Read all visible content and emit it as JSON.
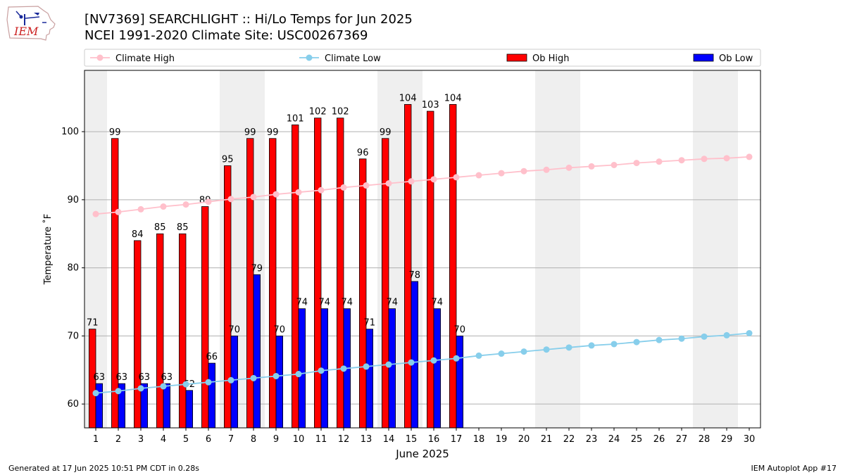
{
  "header": {
    "title_line1": "[NV7369] SEARCHLIGHT :: Hi/Lo Temps for Jun 2025",
    "title_line2": "NCEI 1991-2020 Climate Site: USC00267369",
    "logo_text": "IEM"
  },
  "footer": {
    "generated": "Generated at 17 Jun 2025 10:51 PM CDT in 0.28s",
    "app": "IEM Autoplot App #17"
  },
  "chart_data": {
    "type": "bar",
    "xlabel": "June 2025",
    "ylabel": "Temperature ˚F",
    "ylim": [
      56.5,
      109
    ],
    "yticks": [
      60,
      70,
      80,
      90,
      100
    ],
    "grid": "horizontal",
    "legend_position": "top",
    "days": [
      1,
      2,
      3,
      4,
      5,
      6,
      7,
      8,
      9,
      10,
      11,
      12,
      13,
      14,
      15,
      16,
      17,
      18,
      19,
      20,
      21,
      22,
      23,
      24,
      25,
      26,
      27,
      28,
      29,
      30
    ],
    "weekend_shading": [
      [
        1,
        1
      ],
      [
        7,
        8
      ],
      [
        14,
        15
      ],
      [
        21,
        22
      ],
      [
        28,
        29
      ]
    ],
    "series": [
      {
        "name": "Climate High",
        "kind": "line",
        "color": "#ffc0cb",
        "values": [
          87.9,
          88.2,
          88.6,
          89.0,
          89.3,
          89.7,
          90.1,
          90.4,
          90.8,
          91.1,
          91.4,
          91.8,
          92.1,
          92.4,
          92.7,
          93.0,
          93.3,
          93.6,
          93.9,
          94.2,
          94.4,
          94.7,
          94.9,
          95.1,
          95.4,
          95.6,
          95.8,
          96.0,
          96.1,
          96.3
        ]
      },
      {
        "name": "Climate Low",
        "kind": "line",
        "color": "#87ceeb",
        "values": [
          61.6,
          61.9,
          62.3,
          62.6,
          62.9,
          63.2,
          63.5,
          63.8,
          64.1,
          64.4,
          64.9,
          65.2,
          65.5,
          65.8,
          66.1,
          66.4,
          66.7,
          67.1,
          67.4,
          67.7,
          68.0,
          68.3,
          68.6,
          68.8,
          69.1,
          69.4,
          69.6,
          69.9,
          70.1,
          70.4
        ]
      },
      {
        "name": "Ob High",
        "kind": "bar",
        "color": "#ff0000",
        "values": [
          71,
          99,
          84,
          85,
          85,
          89,
          95,
          99,
          99,
          101,
          102,
          102,
          96,
          99,
          104,
          103,
          104
        ]
      },
      {
        "name": "Ob Low",
        "kind": "bar",
        "color": "#0000ff",
        "values": [
          63,
          63,
          63,
          63,
          62,
          66,
          70,
          79,
          70,
          74,
          74,
          74,
          71,
          74,
          78,
          74,
          70
        ]
      }
    ]
  }
}
